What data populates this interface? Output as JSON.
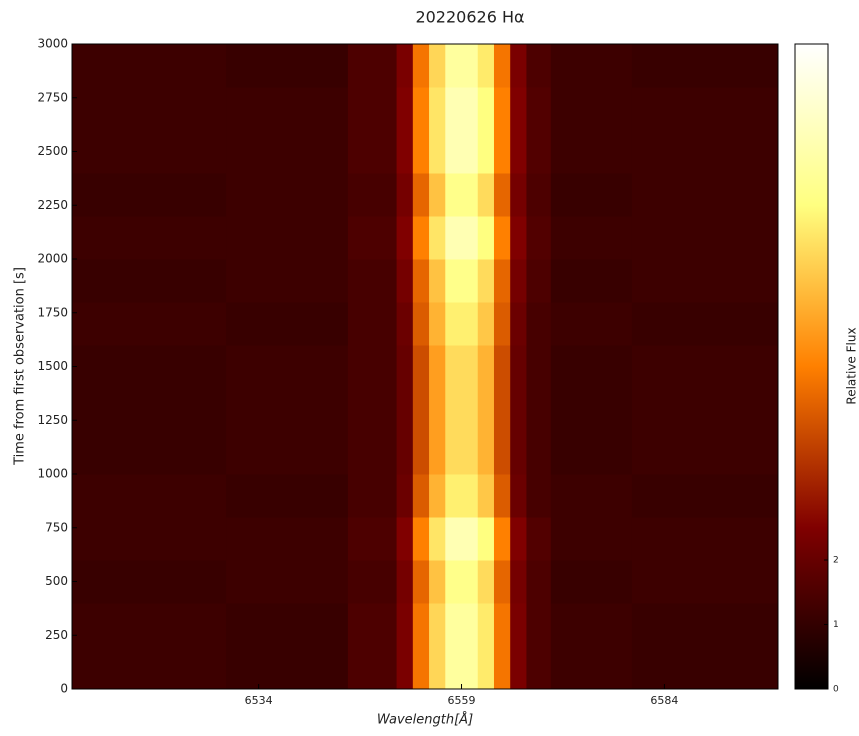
{
  "chart_data": {
    "type": "heatmap",
    "title": "20220626 Hα",
    "xlabel": "Wavelength[Å]",
    "ylabel": "Time from first observation [s]",
    "colorbar_label": "Relative Flux",
    "colormap": "afmhot",
    "x_edges": [
      6511,
      6530,
      6545,
      6551,
      6553,
      6555,
      6557,
      6559,
      6561,
      6563,
      6565,
      6567,
      6570,
      6580,
      6598
    ],
    "y_edges": [
      0,
      200,
      400,
      600,
      800,
      1000,
      1200,
      1400,
      1600,
      1800,
      2000,
      2200,
      2400,
      2600,
      2800,
      3000
    ],
    "z": [
      [
        1.2,
        1.1,
        1.5,
        2.4,
        4.8,
        6.7,
        8.1,
        8.1,
        7.1,
        4.8,
        2.4,
        1.5,
        1.2,
        1.1
      ],
      [
        1.2,
        1.1,
        1.5,
        2.4,
        4.8,
        6.7,
        8.1,
        8.1,
        7.1,
        4.8,
        2.4,
        1.5,
        1.2,
        1.1
      ],
      [
        1.1,
        1.2,
        1.4,
        2.3,
        4.5,
        6.3,
        7.7,
        7.7,
        6.8,
        4.5,
        2.3,
        1.5,
        1.1,
        1.2
      ],
      [
        1.2,
        1.2,
        1.5,
        2.5,
        5,
        7,
        8.5,
        8.5,
        7.5,
        5,
        2.5,
        1.6,
        1.2,
        1.2
      ],
      [
        1.2,
        1.1,
        1.4,
        2.1,
        4.3,
        6.0,
        7.2,
        7.2,
        6.4,
        4.3,
        2.1,
        1.4,
        1.2,
        1.1
      ],
      [
        1.1,
        1.2,
        1.4,
        2.0,
        4.0,
        5.6,
        6.8,
        6.8,
        6.0,
        4.0,
        2.0,
        1.4,
        1.1,
        1.2
      ],
      [
        1.1,
        1.2,
        1.4,
        2.0,
        4.0,
        5.6,
        6.8,
        6.8,
        6.0,
        4.0,
        2.0,
        1.4,
        1.1,
        1.2
      ],
      [
        1.1,
        1.2,
        1.4,
        2.0,
        4.0,
        5.6,
        6.8,
        6.8,
        6.0,
        4.0,
        2.0,
        1.4,
        1.1,
        1.2
      ],
      [
        1.2,
        1.1,
        1.4,
        2.1,
        4.3,
        6.0,
        7.2,
        7.2,
        6.4,
        4.3,
        2.1,
        1.4,
        1.2,
        1.1
      ],
      [
        1.1,
        1.2,
        1.4,
        2.3,
        4.5,
        6.3,
        7.7,
        7.7,
        6.8,
        4.5,
        2.3,
        1.5,
        1.1,
        1.2
      ],
      [
        1.2,
        1.2,
        1.5,
        2.5,
        5,
        7,
        8.5,
        8.5,
        7.5,
        5,
        2.5,
        1.6,
        1.2,
        1.2
      ],
      [
        1.1,
        1.2,
        1.4,
        2.3,
        4.5,
        6.3,
        7.7,
        7.7,
        6.8,
        4.5,
        2.3,
        1.5,
        1.1,
        1.2
      ],
      [
        1.2,
        1.2,
        1.5,
        2.5,
        5,
        7,
        8.5,
        8.5,
        7.5,
        5,
        2.5,
        1.6,
        1.2,
        1.2
      ],
      [
        1.2,
        1.2,
        1.5,
        2.5,
        5,
        7,
        8.5,
        8.5,
        7.5,
        5,
        2.5,
        1.6,
        1.2,
        1.2
      ],
      [
        1.2,
        1.1,
        1.5,
        2.4,
        4.8,
        6.7,
        8.1,
        8.1,
        7.1,
        4.8,
        2.4,
        1.5,
        1.2,
        1.1
      ]
    ],
    "xlim": [
      6511,
      6598
    ],
    "xticks": [
      6534,
      6559,
      6584
    ],
    "ylim": [
      0,
      3000
    ],
    "yticks": [
      0,
      250,
      500,
      750,
      1000,
      1250,
      1500,
      1750,
      2000,
      2250,
      2500,
      2750,
      3000
    ],
    "clim": [
      0,
      10
    ],
    "cticks": [
      0,
      1,
      2
    ]
  }
}
